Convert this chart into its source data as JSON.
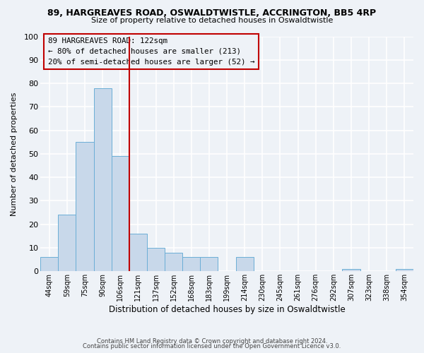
{
  "title": "89, HARGREAVES ROAD, OSWALDTWISTLE, ACCRINGTON, BB5 4RP",
  "subtitle": "Size of property relative to detached houses in Oswaldtwistle",
  "xlabel": "Distribution of detached houses by size in Oswaldtwistle",
  "ylabel": "Number of detached properties",
  "bar_color": "#c8d8ea",
  "bar_edge_color": "#6baed6",
  "categories": [
    "44sqm",
    "59sqm",
    "75sqm",
    "90sqm",
    "106sqm",
    "121sqm",
    "137sqm",
    "152sqm",
    "168sqm",
    "183sqm",
    "199sqm",
    "214sqm",
    "230sqm",
    "245sqm",
    "261sqm",
    "276sqm",
    "292sqm",
    "307sqm",
    "323sqm",
    "338sqm",
    "354sqm"
  ],
  "values": [
    6,
    24,
    55,
    78,
    49,
    16,
    10,
    8,
    6,
    6,
    0,
    6,
    0,
    0,
    0,
    0,
    0,
    1,
    0,
    0,
    1
  ],
  "ylim": [
    0,
    100
  ],
  "yticks": [
    0,
    10,
    20,
    30,
    40,
    50,
    60,
    70,
    80,
    90,
    100
  ],
  "vline_color": "#c00000",
  "vline_pos": 4.5,
  "annotation_text_line1": "89 HARGREAVES ROAD: 122sqm",
  "annotation_text_line2": "← 80% of detached houses are smaller (213)",
  "annotation_text_line3": "20% of semi-detached houses are larger (52) →",
  "footer_line1": "Contains HM Land Registry data © Crown copyright and database right 2024.",
  "footer_line2": "Contains public sector information licensed under the Open Government Licence v3.0.",
  "background_color": "#eef2f7",
  "grid_color": "#ffffff"
}
